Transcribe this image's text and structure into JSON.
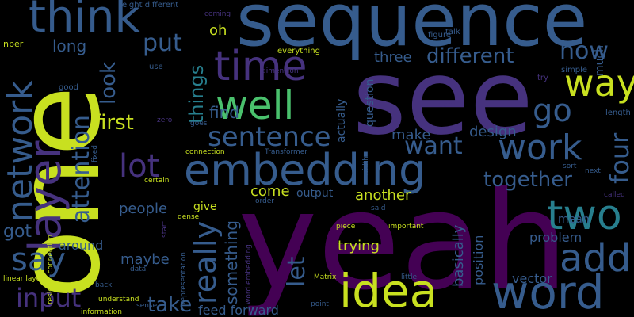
{
  "colors": {
    "background": "#000000",
    "lime": "#c8e020",
    "yellow_green": "#9fda3a",
    "green": "#4ac16d",
    "teal": "#1fa187",
    "teal_blue": "#277f8e",
    "blue": "#365c8d",
    "indigo": "#46327e",
    "purple": "#440154"
  },
  "words": {
    "sequence": "sequence",
    "see": "see",
    "one": "one",
    "yeah": "yeah",
    "think": "think",
    "time": "time",
    "well": "well",
    "embedding": "embedding",
    "idea": "idea",
    "word": "word",
    "network": "network",
    "layer": "layer",
    "attention": "attention",
    "way": "way",
    "go": "go",
    "work": "work",
    "two": "two",
    "add": "add",
    "say": "say",
    "input": "input",
    "sentence": "sentence",
    "lot": "lot",
    "really": "really",
    "want": "want",
    "first": "first",
    "different": "different",
    "now": "now",
    "put": "put",
    "look": "look",
    "things": "things",
    "four": "four",
    "together": "together",
    "take": "take",
    "let": "let",
    "something": "something",
    "got": "got",
    "oh": "oh",
    "long": "long",
    "three": "three",
    "find": "find",
    "make": "make",
    "design": "design",
    "come": "come",
    "another": "another",
    "people": "people",
    "maybe": "maybe",
    "trying": "trying",
    "basically": "basically",
    "position": "position",
    "problem": "problem",
    "vector": "vector",
    "mean": "mean",
    "output": "output",
    "give": "give",
    "around": "around",
    "feed_forward": "feed forward",
    "actually": "actually",
    "question": "question",
    "much": "much",
    "eight_different": "eight different",
    "everything": "everything",
    "figure": "figure",
    "coming": "coming",
    "talk": "talk",
    "nber": "nber",
    "use": "use",
    "good": "good",
    "zero": "zero",
    "dimension": "dimension",
    "learn": "learn",
    "length": "length",
    "simple": "simple",
    "try": "try",
    "next": "next",
    "called": "called",
    "sort": "sort",
    "goes": "goes",
    "connection": "connection",
    "transformer": "Transformer",
    "fixed": "fixed",
    "certain": "certain",
    "dense": "dense",
    "order": "order",
    "start": "start",
    "said": "said",
    "width": "width",
    "data": "data",
    "representation": "representation",
    "word_embedding": "word embedding",
    "piece": "piece",
    "important": "important",
    "residual_connection": "residual connection",
    "linear_layer": "linear layer",
    "back": "back",
    "understand": "understand",
    "information": "information",
    "sense": "sense",
    "matrix": "Matrix",
    "little": "little",
    "point": "point"
  }
}
